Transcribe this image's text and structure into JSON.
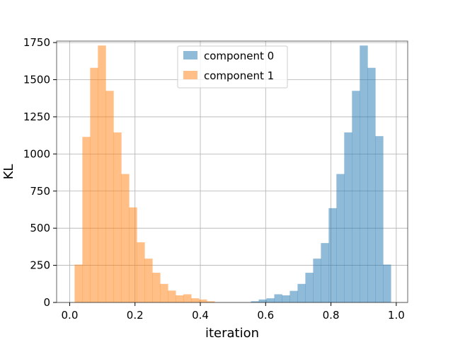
{
  "chart_data": {
    "type": "histogram",
    "title": "",
    "xlabel": "iteration",
    "ylabel": "KL",
    "xlim": [
      -0.04,
      1.035
    ],
    "ylim": [
      0,
      1760
    ],
    "xticks": [
      0.0,
      0.2,
      0.4,
      0.6,
      0.8,
      1.0
    ],
    "xtick_labels": [
      "0.0",
      "0.2",
      "0.4",
      "0.6",
      "0.8",
      "1.0"
    ],
    "yticks": [
      0,
      250,
      500,
      750,
      1000,
      1250,
      1500,
      1750
    ],
    "ytick_labels": [
      "0",
      "250",
      "500",
      "750",
      "1000",
      "1250",
      "1500",
      "1750"
    ],
    "grid": true,
    "legend": "upper center",
    "series": [
      {
        "name": "component 0",
        "color": "#1f77b4",
        "opacity": 0.5,
        "bin_start": 0.555,
        "bin_width": 0.0238,
        "values": [
          8,
          20,
          28,
          55,
          48,
          78,
          125,
          200,
          295,
          400,
          635,
          865,
          1145,
          1425,
          1730,
          1580,
          1120,
          255
        ]
      },
      {
        "name": "component 1",
        "color": "#ff7f0e",
        "opacity": 0.5,
        "bin_start": 0.015,
        "bin_width": 0.0238,
        "values": [
          255,
          1115,
          1580,
          1730,
          1425,
          1145,
          865,
          640,
          405,
          295,
          200,
          125,
          80,
          48,
          55,
          28,
          20,
          8
        ]
      }
    ]
  }
}
